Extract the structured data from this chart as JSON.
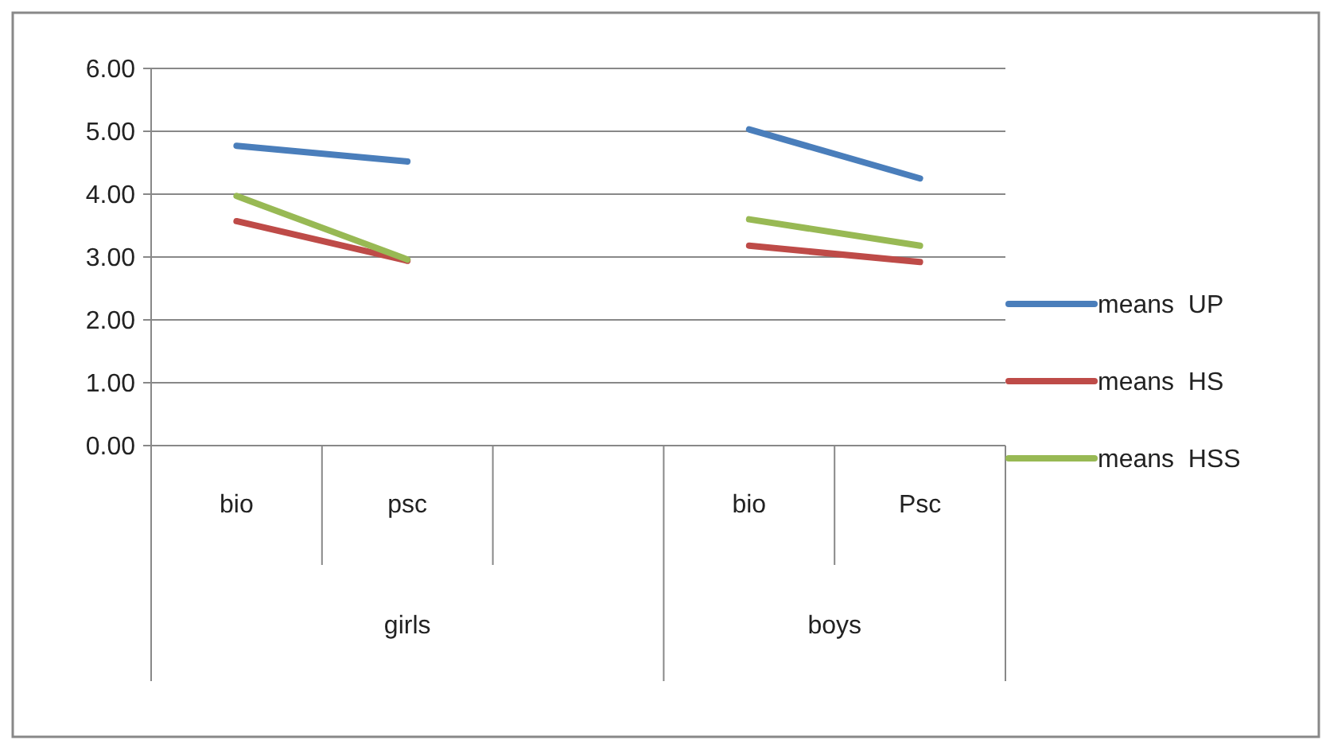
{
  "chart_data": {
    "type": "line",
    "categories": [
      "bio",
      "psc",
      null,
      "bio",
      "Psc"
    ],
    "series": [
      {
        "name": "means  UP",
        "color": "#4a7ebb",
        "values": [
          4.77,
          4.52,
          null,
          5.03,
          4.25
        ]
      },
      {
        "name": "means  HS",
        "color": "#be4b48",
        "values": [
          3.57,
          2.94,
          null,
          3.18,
          2.92
        ]
      },
      {
        "name": "means  HSS",
        "color": "#98b954",
        "values": [
          3.97,
          2.96,
          null,
          3.6,
          3.18
        ]
      }
    ],
    "annotations": [
      "girls",
      "boys"
    ],
    "ylim": [
      0,
      6
    ],
    "yticks": [
      {
        "value": 0,
        "label": "0.00"
      },
      {
        "value": 1,
        "label": "1.00"
      },
      {
        "value": 2,
        "label": "2.00"
      },
      {
        "value": 3,
        "label": "3.00"
      },
      {
        "value": 4,
        "label": "4.00"
      },
      {
        "value": 5,
        "label": "5.00"
      },
      {
        "value": 6,
        "label": "6.00"
      }
    ],
    "grid": "y",
    "legend": "right",
    "marker": "none",
    "line_style": "solid"
  }
}
